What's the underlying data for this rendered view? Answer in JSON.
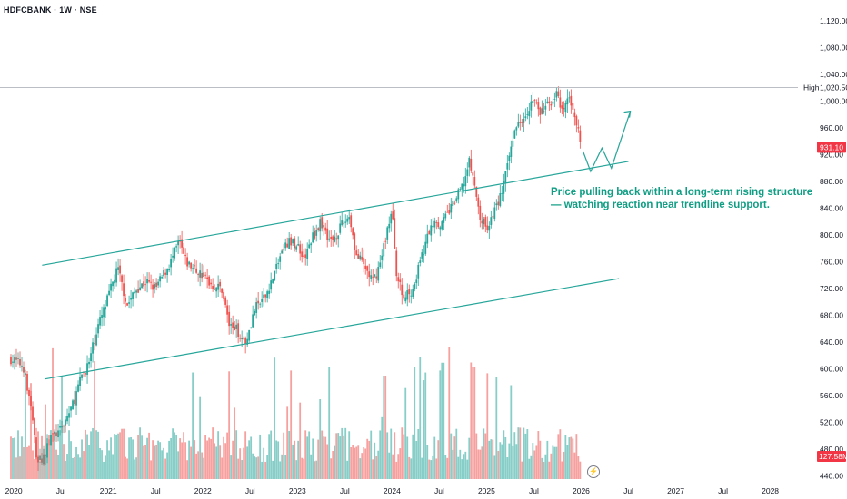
{
  "header": {
    "symbol": "HDFCBANK · 1W · NSE"
  },
  "annotation": {
    "line1": "Price pulling back within a long-term rising structure",
    "line2": "— watching reaction near trendline support."
  },
  "icons": {
    "alert": "lightning-icon"
  },
  "colors": {
    "up": "#26a69a",
    "down": "#ef5350",
    "channel": "#26a69a",
    "path": "#26a69a",
    "label_red": "#f23645"
  },
  "chart_data": {
    "type": "candlestick",
    "x_ticks": [
      "2020",
      "Jul",
      "2021",
      "Jul",
      "2022",
      "Jul",
      "2023",
      "Jul",
      "2024",
      "Jul",
      "2025",
      "Jul",
      "2026",
      "Jul",
      "2027",
      "Jul",
      "2028"
    ],
    "x_tick_dates": [
      2020.0,
      2020.5,
      2021.0,
      2021.5,
      2022.0,
      2022.5,
      2023.0,
      2023.5,
      2024.0,
      2024.5,
      2025.0,
      2025.5,
      2026.0,
      2026.5,
      2027.0,
      2027.5,
      2028.0
    ],
    "y_ticks": [
      440,
      480,
      520,
      560,
      600,
      640,
      680,
      720,
      760,
      800,
      840,
      880,
      920,
      960,
      1000,
      1040,
      1080,
      1120
    ],
    "y_tick_labels": [
      "440.00",
      "480.00",
      "520.00",
      "560.00",
      "600.00",
      "640.00",
      "680.00",
      "720.00",
      "760.00",
      "800.00",
      "840.00",
      "880.00",
      "920.00",
      "960.00",
      "1,000.00",
      "1,040.00",
      "1,080.00",
      "1,120.00"
    ],
    "ylim": [
      430,
      1135
    ],
    "xlim": [
      2019.97,
      2028.1
    ],
    "price_path": [
      [
        2019.97,
        615
      ],
      [
        2020.1,
        605
      ],
      [
        2020.18,
        545
      ],
      [
        2020.25,
        460
      ],
      [
        2020.32,
        470
      ],
      [
        2020.4,
        500
      ],
      [
        2020.48,
        505
      ],
      [
        2020.55,
        525
      ],
      [
        2020.62,
        545
      ],
      [
        2020.72,
        590
      ],
      [
        2020.8,
        610
      ],
      [
        2020.88,
        660
      ],
      [
        2020.96,
        690
      ],
      [
        2021.05,
        730
      ],
      [
        2021.1,
        750
      ],
      [
        2021.2,
        695
      ],
      [
        2021.3,
        720
      ],
      [
        2021.4,
        730
      ],
      [
        2021.5,
        720
      ],
      [
        2021.58,
        740
      ],
      [
        2021.66,
        760
      ],
      [
        2021.75,
        790
      ],
      [
        2021.82,
        760
      ],
      [
        2021.9,
        750
      ],
      [
        2022.0,
        740
      ],
      [
        2022.1,
        725
      ],
      [
        2022.2,
        720
      ],
      [
        2022.28,
        665
      ],
      [
        2022.35,
        660
      ],
      [
        2022.45,
        640
      ],
      [
        2022.55,
        690
      ],
      [
        2022.65,
        705
      ],
      [
        2022.75,
        740
      ],
      [
        2022.82,
        770
      ],
      [
        2022.9,
        790
      ],
      [
        2023.0,
        785
      ],
      [
        2023.08,
        765
      ],
      [
        2023.15,
        795
      ],
      [
        2023.25,
        820
      ],
      [
        2023.35,
        790
      ],
      [
        2023.45,
        810
      ],
      [
        2023.55,
        830
      ],
      [
        2023.62,
        770
      ],
      [
        2023.7,
        755
      ],
      [
        2023.8,
        730
      ],
      [
        2023.88,
        760
      ],
      [
        2023.95,
        810
      ],
      [
        2024.0,
        835
      ],
      [
        2024.05,
        740
      ],
      [
        2024.12,
        705
      ],
      [
        2024.22,
        720
      ],
      [
        2024.3,
        760
      ],
      [
        2024.38,
        800
      ],
      [
        2024.45,
        825
      ],
      [
        2024.52,
        815
      ],
      [
        2024.6,
        835
      ],
      [
        2024.68,
        855
      ],
      [
        2024.75,
        875
      ],
      [
        2024.82,
        910
      ],
      [
        2024.88,
        870
      ],
      [
        2024.92,
        830
      ],
      [
        2025.0,
        810
      ],
      [
        2025.08,
        835
      ],
      [
        2025.15,
        860
      ],
      [
        2025.22,
        900
      ],
      [
        2025.28,
        950
      ],
      [
        2025.35,
        970
      ],
      [
        2025.42,
        985
      ],
      [
        2025.5,
        1005
      ],
      [
        2025.56,
        980
      ],
      [
        2025.62,
        990
      ],
      [
        2025.68,
        1000
      ],
      [
        2025.74,
        1010
      ],
      [
        2025.8,
        980
      ],
      [
        2025.86,
        1005
      ],
      [
        2025.92,
        990
      ],
      [
        2025.96,
        960
      ],
      [
        2026.0,
        931.1
      ]
    ],
    "volume_ylim": [
      0,
      300
    ],
    "volume_note": "volume bars at bottom",
    "channel_upper": [
      [
        2020.3,
        755
      ],
      [
        2026.5,
        910
      ]
    ],
    "channel_lower": [
      [
        2020.33,
        585
      ],
      [
        2026.4,
        735
      ]
    ],
    "projection_path": [
      [
        2026.02,
        925
      ],
      [
        2026.1,
        895
      ],
      [
        2026.22,
        930
      ],
      [
        2026.32,
        900
      ],
      [
        2026.52,
        985
      ]
    ],
    "high_line": {
      "label": "High",
      "value": "1,020.50",
      "y": 1020.5
    },
    "last_price": {
      "value": "931.10",
      "y": 931.1
    },
    "volume_last": {
      "value": "127.58M"
    }
  }
}
